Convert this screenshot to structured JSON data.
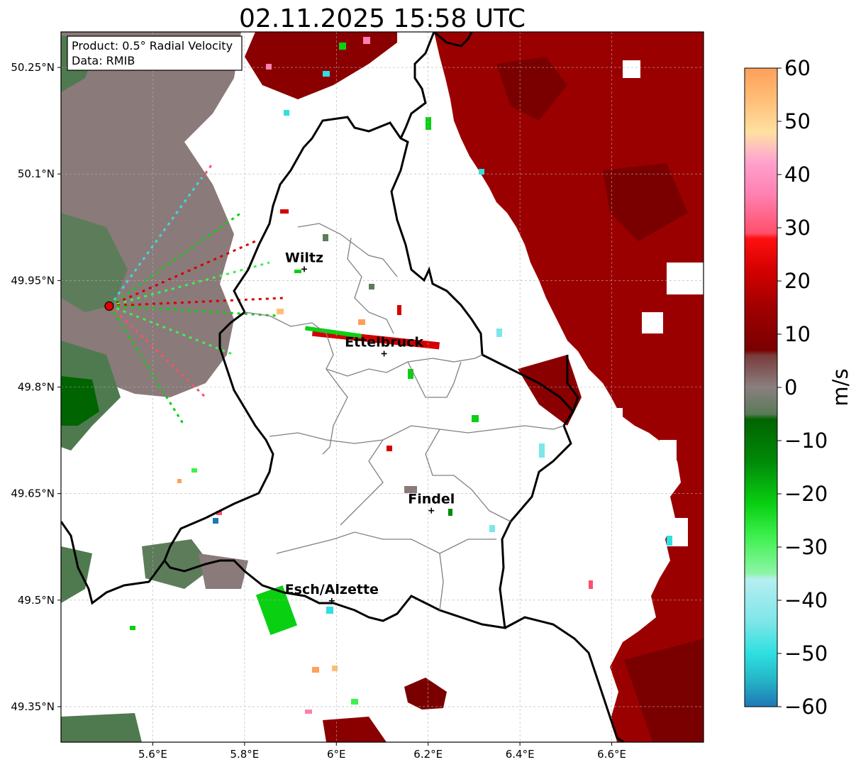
{
  "title": "02.11.2025 15:58 UTC",
  "info_box": {
    "product": "Product: 0.5° Radial Velocity",
    "data_source": "Data: RMIB"
  },
  "axes": {
    "lon_range": [
      5.4,
      6.8
    ],
    "lat_range": [
      49.3,
      50.3
    ],
    "lon_ticks": [
      "5.6°E",
      "5.8°E",
      "6°E",
      "6.2°E",
      "6.4°E",
      "6.6°E"
    ],
    "lon_tick_values": [
      5.6,
      5.8,
      6.0,
      6.2,
      6.4,
      6.6
    ],
    "lat_ticks": [
      "49.35°N",
      "49.5°N",
      "49.65°N",
      "49.8°N",
      "49.95°N",
      "50.1°N",
      "50.25°N"
    ],
    "lat_tick_values": [
      49.35,
      49.5,
      49.65,
      49.8,
      49.95,
      50.1,
      50.25
    ],
    "grid": true
  },
  "colorbar": {
    "unit": "m/s",
    "range": [
      -60,
      60
    ],
    "tick_labels": [
      "60",
      "50",
      "40",
      "30",
      "20",
      "10",
      "0",
      "−10",
      "−20",
      "−30",
      "−40",
      "−50",
      "−60"
    ],
    "tick_values": [
      60,
      50,
      40,
      30,
      20,
      10,
      0,
      -10,
      -20,
      -30,
      -40,
      -50,
      -60
    ],
    "stops": [
      {
        "v": -60,
        "c": "#1f77b4"
      },
      {
        "v": -55,
        "c": "#24b5c8"
      },
      {
        "v": -50,
        "c": "#2ee0e0"
      },
      {
        "v": -44,
        "c": "#7ee6e8"
      },
      {
        "v": -36,
        "c": "#b6eef0"
      },
      {
        "v": -35,
        "c": "#8ef5a8"
      },
      {
        "v": -28,
        "c": "#3ef04e"
      },
      {
        "v": -22,
        "c": "#0ad012"
      },
      {
        "v": -14,
        "c": "#008a08"
      },
      {
        "v": -6,
        "c": "#006400"
      },
      {
        "v": -5,
        "c": "#5a7a58"
      },
      {
        "v": 0,
        "c": "#8a7f7f"
      },
      {
        "v": 6,
        "c": "#7a3c3c"
      },
      {
        "v": 7,
        "c": "#7a0000"
      },
      {
        "v": 15,
        "c": "#a00000"
      },
      {
        "v": 22,
        "c": "#d40000"
      },
      {
        "v": 28,
        "c": "#ff1010"
      },
      {
        "v": 29,
        "c": "#ff4f6a"
      },
      {
        "v": 36,
        "c": "#ff7fb0"
      },
      {
        "v": 42,
        "c": "#ff9fcc"
      },
      {
        "v": 45,
        "c": "#ffc0c0"
      },
      {
        "v": 48,
        "c": "#ffe0a0"
      },
      {
        "v": 54,
        "c": "#ffbe78"
      },
      {
        "v": 60,
        "c": "#ff9f5a"
      }
    ]
  },
  "radar_site": {
    "lon": 5.505,
    "lat": 49.914,
    "color": "#e00000"
  },
  "cities": [
    {
      "name": "Wiltz",
      "lon": 5.93,
      "lat": 49.966
    },
    {
      "name": "Ettelbruck",
      "lon": 6.104,
      "lat": 49.847
    },
    {
      "name": "Findel",
      "lon": 6.207,
      "lat": 49.626
    },
    {
      "name": "Esch/Alzette",
      "lon": 5.99,
      "lat": 49.499
    }
  ],
  "colors": {
    "inbound_mid": "#4f7a4f",
    "outbound_dark": "#9b0000",
    "zero_gray": "#8a7a7a",
    "border": "#000000",
    "canton": "#808080"
  }
}
